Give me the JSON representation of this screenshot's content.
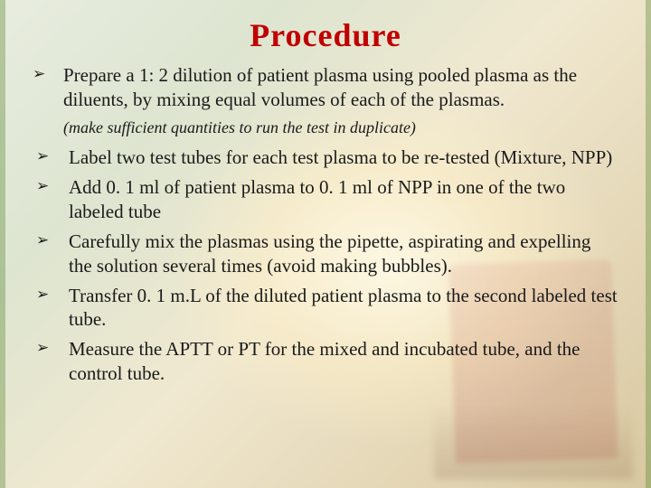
{
  "title": "Procedure",
  "bullet_glyph": "➢",
  "colors": {
    "title": "#c00000",
    "text": "#1a1a1a",
    "bg_start": "#e8ede0",
    "bg_end": "#d8c8a0"
  },
  "items": {
    "b0": "Prepare a 1: 2 dilution of patient plasma using pooled plasma as the diluents, by mixing equal volumes of each of the plasmas.",
    "note": "(make sufficient quantities to run the test in duplicate)",
    "b1": "Label two test tubes for each test plasma to be re-tested (Mixture, NPP)",
    "b2": "Add 0. 1 ml of patient plasma to 0. 1 ml of NPP in one of the two labeled tube",
    "b3": "Carefully mix the plasmas using the pipette, aspirating and expelling the solution several times (avoid making bubbles).",
    "b4": "Transfer 0. 1 m.L of the diluted patient plasma to the second labeled test tube.",
    "b5": "Measure the APTT or PT for the mixed and incubated tube, and the control tube."
  }
}
